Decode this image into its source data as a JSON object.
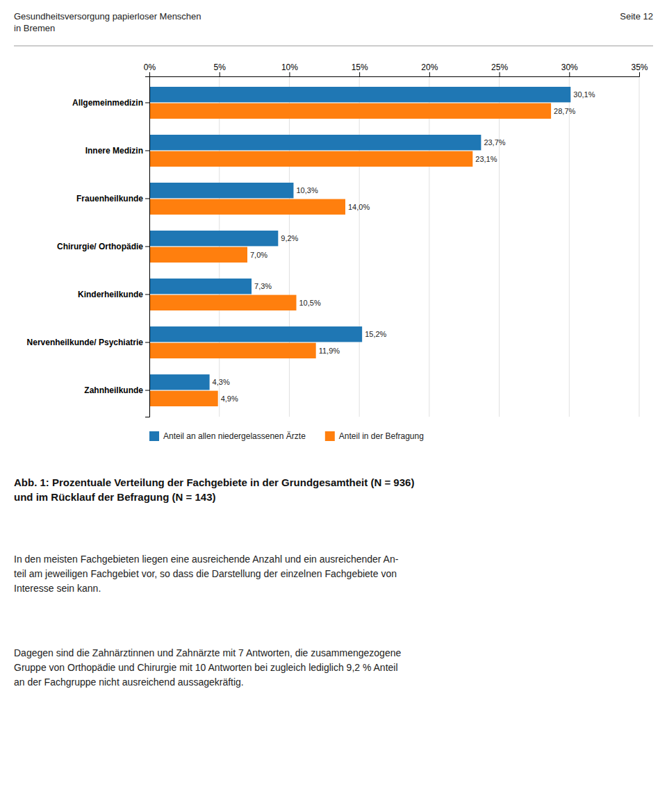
{
  "chart_data": {
    "type": "bar",
    "orientation": "horizontal",
    "title": "Abb. 1: Prozentuale Verteilung der Fachgebiete in der Grundgesamtheit (N = 936)\nund im Rücklauf der Befragung (N = 143)",
    "annotations": [
      "Gesundheitsversorgung papierloser Menschen\nin Bremen",
      "Seite 12",
      "In den meisten Fachgebieten liegen eine ausreichende Anzahl und ein ausreichender An-\nteil am jeweiligen Fachgebiet vor, so dass die Darstellung der einzelnen Fachgebiete von\nInteresse sein kann.",
      "Dagegen sind die Zahnärztinnen und Zahnärzte mit 7 Antworten, die zusammengezogene\nGruppe von Orthopädie und Chirurgie mit 10 Antworten bei zugleich lediglich 9,2 % Anteil\nan der Fachgruppe nicht ausreichend aussagekräftig."
    ],
    "categories": [
      "Allgemeinmedizin",
      "Innere Medizin",
      "Frauenheilkunde",
      "Chirurgie/ Orthopädie",
      "Kinderheilkunde",
      "Nervenheilkunde/ Psychiatrie",
      "Zahnheilkunde"
    ],
    "series": [
      {
        "name": "Anteil an allen niedergelassenen Ärzte",
        "values": [
          30.1,
          23.7,
          10.3,
          9.2,
          7.3,
          15.2,
          4.3
        ],
        "value_labels": [
          "30,1%",
          "23,7%",
          "10,3%",
          "9,2%",
          "7,3%",
          "15,2%",
          "4,3%"
        ]
      },
      {
        "name": "Anteil in der Befragung",
        "values": [
          28.7,
          23.1,
          14.0,
          7.0,
          10.5,
          11.9,
          4.9
        ],
        "value_labels": [
          "28,7%",
          "23,1%",
          "14,0%",
          "7,0%",
          "10,5%",
          "11,9%",
          "4,9%"
        ]
      }
    ],
    "xlim": [
      0,
      35
    ],
    "xticks": [
      {
        "value": 0,
        "label": "0%"
      },
      {
        "value": 5,
        "label": "5%"
      },
      {
        "value": 10,
        "label": "10%"
      },
      {
        "value": 15,
        "label": "15%"
      },
      {
        "value": 20,
        "label": "20%"
      },
      {
        "value": 25,
        "label": "25%"
      },
      {
        "value": 30,
        "label": "30%"
      },
      {
        "value": 35,
        "label": "35%"
      }
    ],
    "grid": true,
    "data_labels": true,
    "legend": "bottom"
  }
}
